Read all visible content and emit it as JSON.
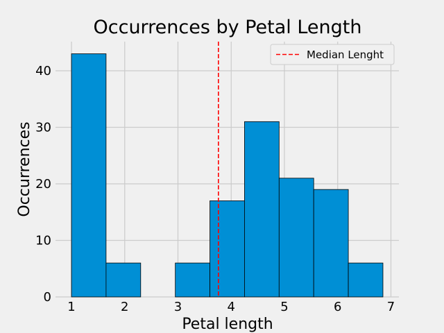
{
  "chart_data": {
    "type": "bar",
    "title": "Occurrences by Petal Length",
    "xlabel": "Petal length",
    "ylabel": "Occurrences",
    "bins": [
      {
        "start": 1.0,
        "end": 1.65,
        "count": 43
      },
      {
        "start": 1.65,
        "end": 2.3,
        "count": 6
      },
      {
        "start": 2.3,
        "end": 2.95,
        "count": 0
      },
      {
        "start": 2.95,
        "end": 3.6,
        "count": 6
      },
      {
        "start": 3.6,
        "end": 4.25,
        "count": 17
      },
      {
        "start": 4.25,
        "end": 4.9,
        "count": 31
      },
      {
        "start": 4.9,
        "end": 5.55,
        "count": 21
      },
      {
        "start": 5.55,
        "end": 6.2,
        "count": 19
      },
      {
        "start": 6.2,
        "end": 6.85,
        "count": 6
      }
    ],
    "median_line": {
      "x": 3.76,
      "label": "Median Lenght",
      "color": "#ff0000",
      "style": "dashed"
    },
    "xlim": [
      0.7,
      7.15
    ],
    "ylim": [
      0,
      45.15
    ],
    "xticks": [
      1,
      2,
      3,
      4,
      5,
      6,
      7
    ],
    "yticks": [
      0,
      10,
      20,
      30,
      40
    ],
    "grid": true,
    "legend_position": "top-right",
    "bar_color": "#008fd5",
    "background": "#f0f0f0"
  }
}
